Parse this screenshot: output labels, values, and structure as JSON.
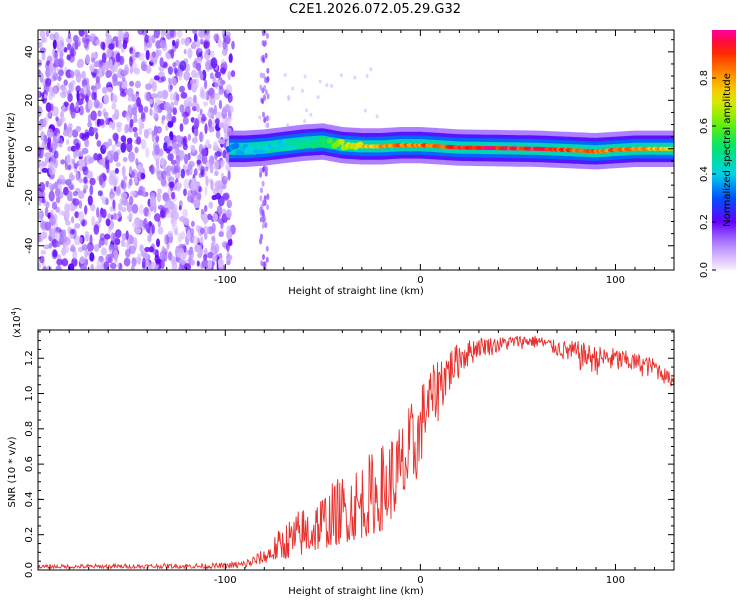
{
  "title": "C2E1.2026.072.05.29.G32",
  "chart_data": [
    {
      "type": "heatmap",
      "name": "spectrogram",
      "xlabel": "Height of straight line (km)",
      "ylabel": "Frequency (Hz)",
      "xlim": [
        -196,
        130
      ],
      "ylim": [
        -50,
        49
      ],
      "xticks": [
        -100,
        0,
        100
      ],
      "xtick_labels": [
        "-100",
        "0",
        "100"
      ],
      "yticks": [
        -40,
        -20,
        0,
        20,
        40
      ],
      "ytick_labels": [
        "-40",
        "-20",
        "0",
        "20",
        "40"
      ],
      "colorbar": {
        "label": "Normalized spectral amplitude",
        "range": [
          0,
          1
        ],
        "ticks": [
          0.0,
          0.2,
          0.4,
          0.6,
          0.8
        ],
        "tick_labels": [
          "0.0",
          "0.2",
          "0.4",
          "0.6",
          "0.8"
        ]
      },
      "ridge": [
        {
          "x": -98,
          "f": 0,
          "a": 0.35
        },
        {
          "x": -90,
          "f": 0,
          "a": 0.4
        },
        {
          "x": -80,
          "f": 0.5,
          "a": 0.45
        },
        {
          "x": -70,
          "f": 1.5,
          "a": 0.45
        },
        {
          "x": -60,
          "f": 2.5,
          "a": 0.5
        },
        {
          "x": -50,
          "f": 3,
          "a": 0.55
        },
        {
          "x": -40,
          "f": 1.5,
          "a": 0.7
        },
        {
          "x": -30,
          "f": 1.0,
          "a": 0.8
        },
        {
          "x": -20,
          "f": 1.0,
          "a": 0.85
        },
        {
          "x": -10,
          "f": 1.5,
          "a": 0.9
        },
        {
          "x": 0,
          "f": 1.5,
          "a": 0.9
        },
        {
          "x": 20,
          "f": 0.5,
          "a": 1.0
        },
        {
          "x": 60,
          "f": 0,
          "a": 1.0
        },
        {
          "x": 90,
          "f": -1,
          "a": 0.9
        },
        {
          "x": 110,
          "f": 0,
          "a": 0.9
        },
        {
          "x": 130,
          "f": 0,
          "a": 0.8
        }
      ]
    },
    {
      "type": "line",
      "name": "snr",
      "xlabel": "Height of straight line (km)",
      "ylabel": "SNR (10 * v/v)",
      "exponent_label": "(x10",
      "exponent_power": "4",
      "exponent_close": ")",
      "xlim": [
        -196,
        130
      ],
      "ylim": [
        0,
        1.36
      ],
      "xticks": [
        -100,
        0,
        100
      ],
      "xtick_labels": [
        "-100",
        "0",
        "100"
      ],
      "yticks": [
        0,
        0.2,
        0.4,
        0.6,
        0.8,
        1.0,
        1.2
      ],
      "ytick_labels": [
        "0.0",
        "0.2",
        "0.4",
        "0.6",
        "0.8",
        "1.0",
        "1.2"
      ],
      "color": "#e8302c",
      "envelope": {
        "x": [
          -196,
          -100,
          -90,
          -80,
          -70,
          -60,
          -50,
          -40,
          -30,
          -20,
          -10,
          0,
          10,
          20,
          30,
          40,
          50,
          60,
          70,
          80,
          90,
          100,
          110,
          120,
          125,
          130
        ],
        "low": [
          0.01,
          0.01,
          0.01,
          0.04,
          0.06,
          0.08,
          0.12,
          0.15,
          0.18,
          0.22,
          0.35,
          0.55,
          0.85,
          1.08,
          1.2,
          1.22,
          1.25,
          1.25,
          1.2,
          1.12,
          1.1,
          1.1,
          1.1,
          1.08,
          1.05,
          1.02
        ],
        "high": [
          0.03,
          0.04,
          0.06,
          0.12,
          0.27,
          0.37,
          0.45,
          0.55,
          0.63,
          0.72,
          0.85,
          1.05,
          1.22,
          1.29,
          1.32,
          1.32,
          1.33,
          1.33,
          1.3,
          1.3,
          1.27,
          1.26,
          1.23,
          1.2,
          1.15,
          1.1
        ]
      }
    }
  ]
}
